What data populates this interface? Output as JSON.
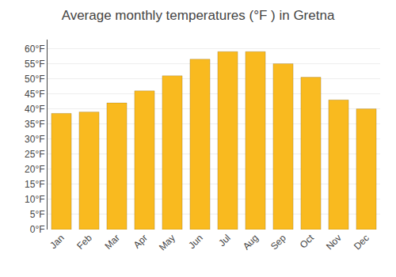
{
  "chart_data": {
    "type": "bar",
    "title": "Average monthly temperatures (°F ) in Gretna",
    "categories": [
      "Jan",
      "Feb",
      "Mar",
      "Apr",
      "May",
      "Jun",
      "Jul",
      "Aug",
      "Sep",
      "Oct",
      "Nov",
      "Dec"
    ],
    "values": [
      38.5,
      39.0,
      42.0,
      46.0,
      51.0,
      56.5,
      59.0,
      59.0,
      55.0,
      50.5,
      43.0,
      40.0
    ],
    "color": "#F9BA1F",
    "ylim": [
      0,
      63
    ],
    "yticks": [
      {
        "value": 0,
        "label": "0°F"
      },
      {
        "value": 5,
        "label": "5°F"
      },
      {
        "value": 10,
        "label": "10°F"
      },
      {
        "value": 15,
        "label": "15°F"
      },
      {
        "value": 20,
        "label": "20°F"
      },
      {
        "value": 25,
        "label": "25°F"
      },
      {
        "value": 30,
        "label": "30°F"
      },
      {
        "value": 35,
        "label": "35°F"
      },
      {
        "value": 40,
        "label": "40°F"
      },
      {
        "value": 45,
        "label": "45°F"
      },
      {
        "value": 50,
        "label": "50°F"
      },
      {
        "value": 55,
        "label": "55°F"
      },
      {
        "value": 60,
        "label": "60°F"
      }
    ],
    "grid": true
  }
}
